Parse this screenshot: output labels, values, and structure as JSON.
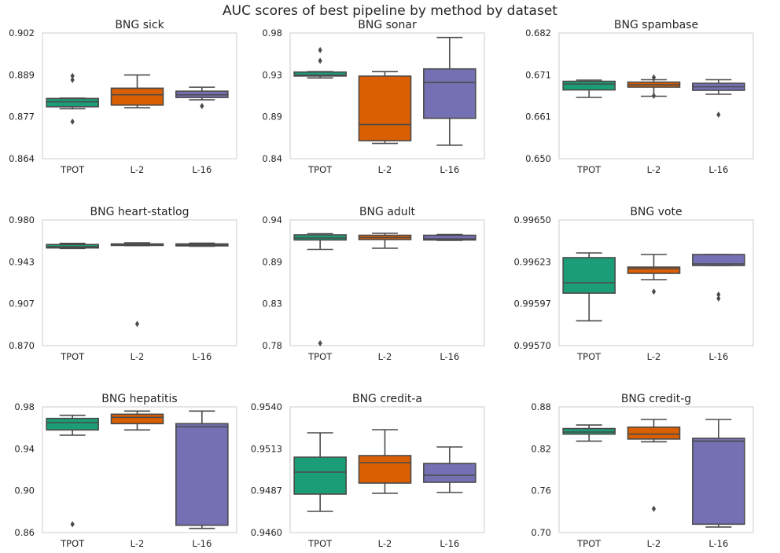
{
  "title": "AUC scores of best pipeline by method by dataset",
  "colors": {
    "TPOT": "#1b9e77",
    "L-2": "#d95f02",
    "L-16": "#7570b3",
    "line": "#4a4a4a",
    "frame": "#cccccc"
  },
  "chart_data": [
    {
      "type": "box",
      "title": "BNG sick",
      "categories": [
        "TPOT",
        "L-2",
        "L-16"
      ],
      "ylim": [
        0.864,
        0.902
      ],
      "yticks": [
        "0.902",
        "0.889",
        "0.877",
        "0.864"
      ],
      "boxes": [
        {
          "whislo": 0.8791,
          "q1": 0.8797,
          "med": 0.8812,
          "q3": 0.8822,
          "whishi": 0.8823,
          "fliers": [
            0.8752,
            0.8878,
            0.889
          ]
        },
        {
          "whislo": 0.8794,
          "q1": 0.8802,
          "med": 0.8833,
          "q3": 0.8853,
          "whishi": 0.8893,
          "fliers": []
        },
        {
          "whislo": 0.8818,
          "q1": 0.8825,
          "med": 0.8833,
          "q3": 0.8844,
          "whishi": 0.8856,
          "fliers": [
            0.8799
          ]
        }
      ]
    },
    {
      "type": "box",
      "title": "BNG sonar",
      "categories": [
        "TPOT",
        "L-2",
        "L-16"
      ],
      "ylim": [
        0.84,
        0.98
      ],
      "yticks": [
        "0.98",
        "0.93",
        "0.89",
        "0.84"
      ],
      "boxes": [
        {
          "whislo": 0.93,
          "q1": 0.932,
          "med": 0.933,
          "q3": 0.9365,
          "whishi": 0.937,
          "fliers": [
            0.949,
            0.961
          ]
        },
        {
          "whislo": 0.857,
          "q1": 0.86,
          "med": 0.878,
          "q3": 0.932,
          "whishi": 0.937,
          "fliers": []
        },
        {
          "whislo": 0.855,
          "q1": 0.885,
          "med": 0.925,
          "q3": 0.94,
          "whishi": 0.975,
          "fliers": []
        }
      ]
    },
    {
      "type": "box",
      "title": "BNG spambase",
      "categories": [
        "TPOT",
        "L-2",
        "L-16"
      ],
      "ylim": [
        0.65,
        0.682
      ],
      "yticks": [
        "0.682",
        "0.671",
        "0.661",
        "0.650"
      ],
      "boxes": [
        {
          "whislo": 0.6656,
          "q1": 0.6675,
          "med": 0.669,
          "q3": 0.6697,
          "whishi": 0.67,
          "fliers": []
        },
        {
          "whislo": 0.6659,
          "q1": 0.6682,
          "med": 0.6688,
          "q3": 0.6695,
          "whishi": 0.6701,
          "fliers": [
            0.666,
            0.6707
          ]
        },
        {
          "whislo": 0.6664,
          "q1": 0.6674,
          "med": 0.6683,
          "q3": 0.6692,
          "whishi": 0.6701,
          "fliers": [
            0.6612
          ]
        }
      ]
    },
    {
      "type": "box",
      "title": "BNG heart-statlog",
      "categories": [
        "TPOT",
        "L-2",
        "L-16"
      ],
      "ylim": [
        0.87,
        0.98
      ],
      "yticks": [
        "0.980",
        "0.943",
        "0.907",
        "0.870"
      ],
      "boxes": [
        {
          "whislo": 0.955,
          "q1": 0.9555,
          "med": 0.9565,
          "q3": 0.9585,
          "whishi": 0.9595,
          "fliers": []
        },
        {
          "whislo": 0.9575,
          "q1": 0.9577,
          "med": 0.9583,
          "q3": 0.959,
          "whishi": 0.96,
          "fliers": [
            0.889
          ]
        },
        {
          "whislo": 0.957,
          "q1": 0.9573,
          "med": 0.958,
          "q3": 0.959,
          "whishi": 0.9597,
          "fliers": []
        }
      ]
    },
    {
      "type": "box",
      "title": "BNG adult",
      "categories": [
        "TPOT",
        "L-2",
        "L-16"
      ],
      "ylim": [
        0.78,
        0.94
      ],
      "yticks": [
        "0.94",
        "0.89",
        "0.83",
        "0.78"
      ],
      "boxes": [
        {
          "whislo": 0.9025,
          "q1": 0.9145,
          "med": 0.917,
          "q3": 0.921,
          "whishi": 0.9225,
          "fliers": [
            0.783
          ]
        },
        {
          "whislo": 0.904,
          "q1": 0.915,
          "med": 0.9175,
          "q3": 0.9205,
          "whishi": 0.923,
          "fliers": []
        },
        {
          "whislo": 0.914,
          "q1": 0.9145,
          "med": 0.916,
          "q3": 0.9205,
          "whishi": 0.9215,
          "fliers": []
        }
      ]
    },
    {
      "type": "box",
      "title": "BNG vote",
      "categories": [
        "TPOT",
        "L-2",
        "L-16"
      ],
      "ylim": [
        0.9957,
        0.9965
      ],
      "yticks": [
        "0.99650",
        "0.99623",
        "0.99597",
        "0.99570"
      ],
      "boxes": [
        {
          "whislo": 0.995858,
          "q1": 0.996034,
          "med": 0.9961,
          "q3": 0.99626,
          "whishi": 0.99629,
          "fliers": []
        },
        {
          "whislo": 0.99612,
          "q1": 0.99616,
          "med": 0.99619,
          "q3": 0.9962,
          "whishi": 0.99628,
          "fliers": [
            0.996044
          ]
        },
        {
          "whislo": 0.99621,
          "q1": 0.99621,
          "med": 0.99622,
          "q3": 0.99628,
          "whishi": 0.99628,
          "fliers": [
            0.996,
            0.996025
          ]
        }
      ]
    },
    {
      "type": "box",
      "title": "BNG hepatitis",
      "categories": [
        "TPOT",
        "L-2",
        "L-16"
      ],
      "ylim": [
        0.86,
        0.98
      ],
      "yticks": [
        "0.98",
        "0.94",
        "0.90",
        "0.86"
      ],
      "boxes": [
        {
          "whislo": 0.953,
          "q1": 0.958,
          "med": 0.965,
          "q3": 0.969,
          "whishi": 0.972,
          "fliers": [
            0.868
          ]
        },
        {
          "whislo": 0.958,
          "q1": 0.964,
          "med": 0.97,
          "q3": 0.973,
          "whishi": 0.976,
          "fliers": []
        },
        {
          "whislo": 0.864,
          "q1": 0.867,
          "med": 0.961,
          "q3": 0.964,
          "whishi": 0.976,
          "fliers": []
        }
      ]
    },
    {
      "type": "box",
      "title": "BNG credit-a",
      "categories": [
        "TPOT",
        "L-2",
        "L-16"
      ],
      "ylim": [
        0.946,
        0.954
      ],
      "yticks": [
        "0.9540",
        "0.9513",
        "0.9487",
        "0.9460"
      ],
      "boxes": [
        {
          "whislo": 0.94735,
          "q1": 0.94845,
          "med": 0.94985,
          "q3": 0.9508,
          "whishi": 0.95235,
          "fliers": []
        },
        {
          "whislo": 0.9485,
          "q1": 0.94915,
          "med": 0.95045,
          "q3": 0.9509,
          "whishi": 0.95255,
          "fliers": []
        },
        {
          "whislo": 0.94855,
          "q1": 0.9492,
          "med": 0.94965,
          "q3": 0.9504,
          "whishi": 0.95145,
          "fliers": []
        }
      ]
    },
    {
      "type": "box",
      "title": "BNG credit-g",
      "categories": [
        "TPOT",
        "L-2",
        "L-16"
      ],
      "ylim": [
        0.7,
        0.88
      ],
      "yticks": [
        "0.88",
        "0.82",
        "0.76",
        "0.70"
      ],
      "boxes": [
        {
          "whislo": 0.831,
          "q1": 0.841,
          "med": 0.844,
          "q3": 0.849,
          "whishi": 0.854,
          "fliers": []
        },
        {
          "whislo": 0.83,
          "q1": 0.834,
          "med": 0.841,
          "q3": 0.851,
          "whishi": 0.862,
          "fliers": [
            0.734
          ]
        },
        {
          "whislo": 0.708,
          "q1": 0.712,
          "med": 0.831,
          "q3": 0.835,
          "whishi": 0.862,
          "fliers": []
        }
      ]
    }
  ]
}
